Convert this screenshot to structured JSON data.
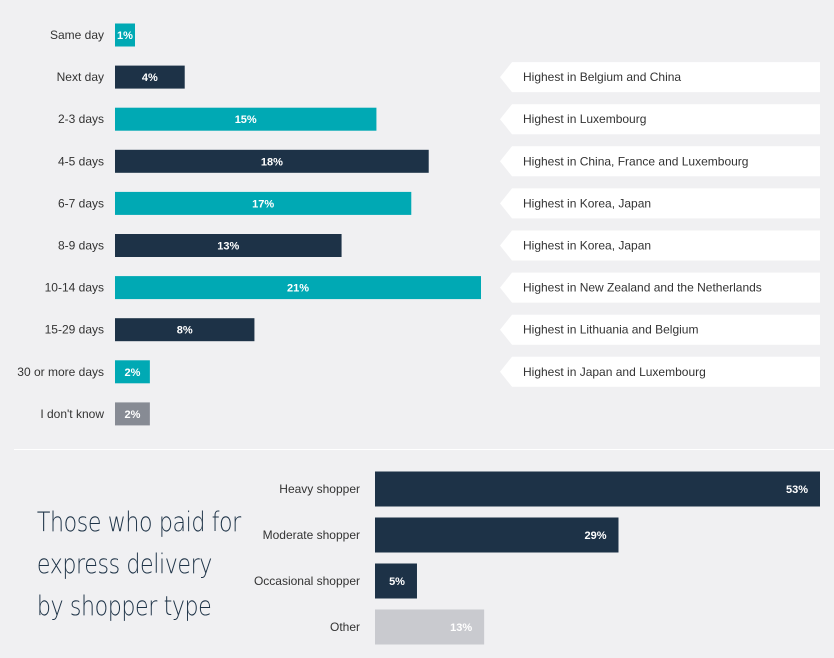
{
  "colors": {
    "teal": "#00a9b4",
    "navy": "#1d3247",
    "gray": "#878b94",
    "light_gray": "#c9cacf",
    "note_bg": "#ffffff"
  },
  "bottom_title": {
    "line1": "Those who paid for",
    "line2": "express delivery",
    "line3": "by shopper type"
  },
  "chart_data": [
    {
      "type": "bar",
      "orientation": "horizontal",
      "categories": [
        "Same day",
        "Next day",
        "2-3 days",
        "4-5 days",
        "6-7 days",
        "8-9 days",
        "10-14 days",
        "15-29 days",
        "30 or more days",
        "I don't know"
      ],
      "values": [
        1,
        4,
        15,
        18,
        17,
        13,
        21,
        8,
        2,
        2
      ],
      "value_labels": [
        "1%",
        "4%",
        "15%",
        "18%",
        "17%",
        "13%",
        "21%",
        "8%",
        "2%",
        "2%"
      ],
      "bar_colors": [
        "teal",
        "navy",
        "teal",
        "navy",
        "teal",
        "navy",
        "teal",
        "navy",
        "teal",
        "gray"
      ],
      "notes": [
        "",
        "Highest in Belgium and China",
        "Highest in Luxembourg",
        "Highest in China, France and Luxembourg",
        "Highest in Korea, Japan",
        "Highest in Korea, Japan",
        "Highest in New Zealand and the Netherlands",
        "Highest in Lithuania and Belgium",
        "Highest in Japan and Luxembourg",
        ""
      ],
      "xlim": [
        0,
        21
      ]
    },
    {
      "type": "bar",
      "orientation": "horizontal",
      "title": "Those who paid for express delivery by shopper type",
      "categories": [
        "Heavy shopper",
        "Moderate shopper",
        "Occasional shopper",
        "Other"
      ],
      "values": [
        53,
        29,
        5,
        13
      ],
      "value_labels": [
        "53%",
        "29%",
        "5%",
        "13%"
      ],
      "bar_colors": [
        "navy",
        "navy",
        "navy",
        "light_gray"
      ],
      "xlim": [
        0,
        53
      ]
    }
  ]
}
